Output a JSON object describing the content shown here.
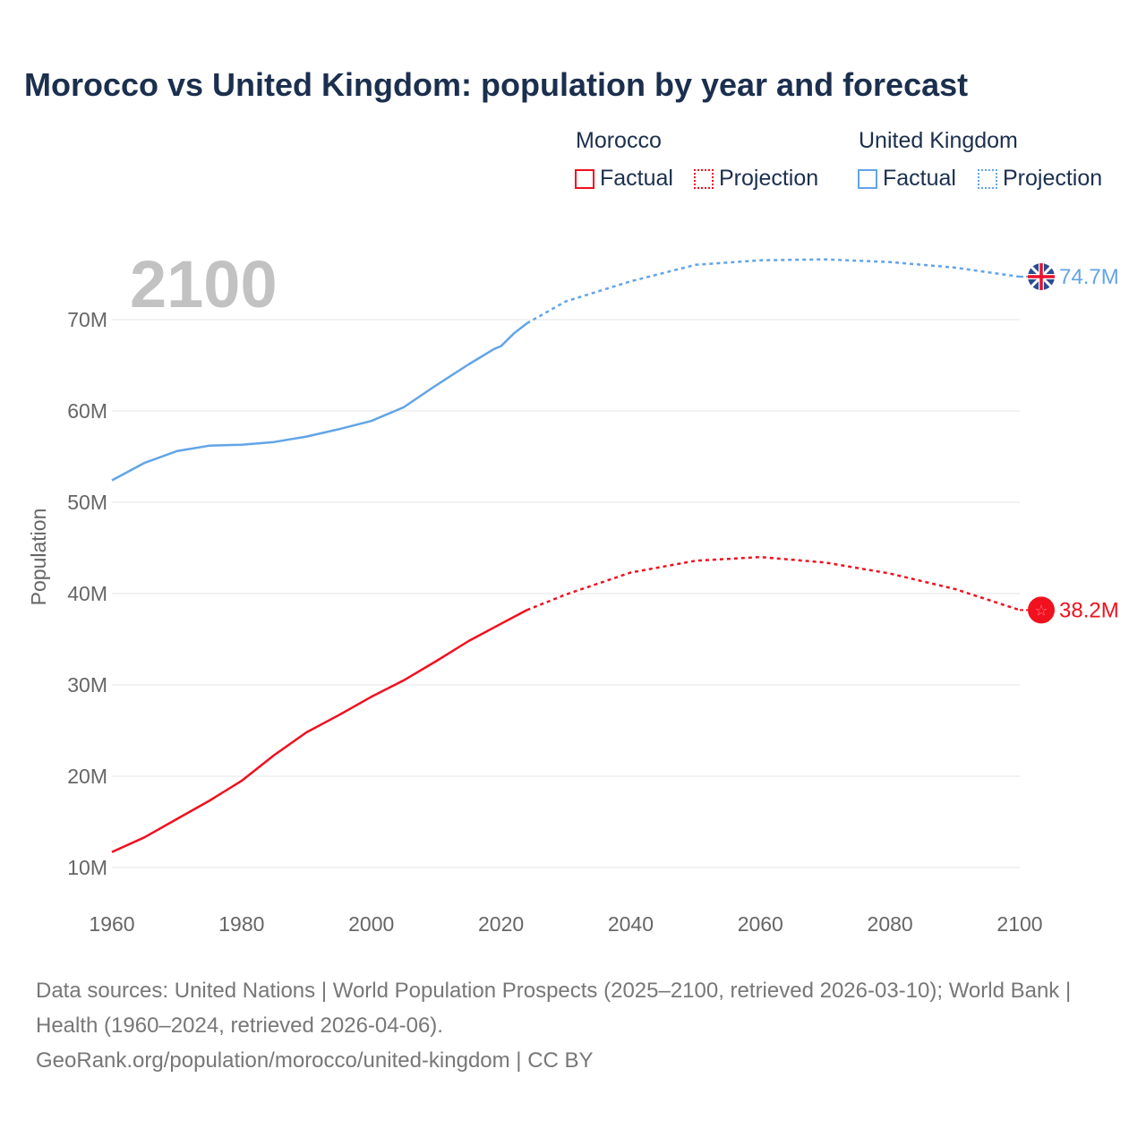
{
  "chart_data": {
    "type": "line",
    "title": "Morocco vs United Kingdom: population by year and forecast",
    "ylabel": "Population",
    "xlabel": "",
    "xlim": [
      1960,
      2100
    ],
    "ylim": [
      10,
      75
    ],
    "x_ticks": [
      "1960",
      "1980",
      "2000",
      "2020",
      "2040",
      "2060",
      "2080",
      "2100"
    ],
    "y_ticks": [
      "10M",
      "20M",
      "30M",
      "40M",
      "50M",
      "60M",
      "70M"
    ],
    "year_label": "2100",
    "legend": {
      "groups": [
        {
          "name": "Morocco",
          "factual": "Factual",
          "projection": "Projection"
        },
        {
          "name": "United Kingdom",
          "factual": "Factual",
          "projection": "Projection"
        }
      ]
    },
    "series": [
      {
        "name": "Morocco",
        "color": "#f0101e",
        "end_label": "38.2M",
        "factual": {
          "x": [
            1960,
            1965,
            1970,
            1975,
            1980,
            1985,
            1990,
            1995,
            2000,
            2005,
            2010,
            2015,
            2020,
            2024
          ],
          "y": [
            11.7,
            13.3,
            15.3,
            17.3,
            19.5,
            22.3,
            24.8,
            26.7,
            28.7,
            30.5,
            32.6,
            34.8,
            36.7,
            38.2
          ]
        },
        "projection": {
          "x": [
            2024,
            2030,
            2040,
            2050,
            2060,
            2070,
            2080,
            2090,
            2100
          ],
          "y": [
            38.2,
            39.9,
            42.3,
            43.6,
            44.0,
            43.4,
            42.2,
            40.5,
            38.2
          ]
        }
      },
      {
        "name": "United Kingdom",
        "color": "#62a4e6",
        "end_label": "74.7M",
        "factual": {
          "x": [
            1960,
            1965,
            1970,
            1975,
            1980,
            1985,
            1990,
            1995,
            2000,
            2005,
            2010,
            2015,
            2019,
            2020,
            2022,
            2024
          ],
          "y": [
            52.4,
            54.3,
            55.6,
            56.2,
            56.3,
            56.6,
            57.2,
            58.0,
            58.9,
            60.4,
            62.8,
            65.1,
            66.8,
            67.1,
            68.5,
            69.6
          ]
        },
        "projection": {
          "x": [
            2024,
            2030,
            2040,
            2050,
            2060,
            2070,
            2080,
            2090,
            2100
          ],
          "y": [
            69.6,
            72.0,
            74.2,
            76.0,
            76.5,
            76.6,
            76.3,
            75.7,
            74.7
          ]
        }
      }
    ]
  },
  "footer": {
    "line1": "Data sources: United Nations | World Population Prospects (2025–2100, retrieved 2026-03-10); World Bank | Health (1960–2024, retrieved 2026-04-06).",
    "line2": "GeoRank.org/population/morocco/united-kingdom | CC BY"
  }
}
